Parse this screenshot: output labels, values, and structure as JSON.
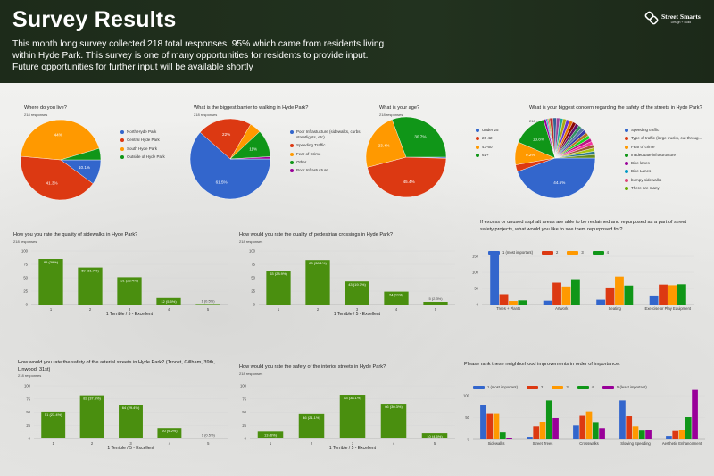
{
  "header": {
    "title": "Survey Results",
    "description": "This month long survey collected 218 total responses, 95% which came from residents living within Hyde Park. This survey is one of many opportunities for residents to provide input. Future opportunities for further input will be available shortly",
    "logo_name": "Street Smarts",
    "logo_tagline": "Design + Build"
  },
  "colors": {
    "blue": "#3366cc",
    "red": "#dc3912",
    "orange": "#ff9900",
    "green": "#109618",
    "purple": "#990099",
    "cyan": "#0099c6",
    "pink": "#dd4477",
    "lime": "#66aa00",
    "bar_green": "#4a8f0f",
    "header_bg": "#1f2e1c"
  },
  "chart_data": [
    {
      "id": "c1",
      "type": "pie",
      "title": "Where do you live?",
      "subtitle": "218 responses",
      "labels": [
        "North Hyde Park",
        "Central Hyde Park",
        "South Hyde Park",
        "Outside of Hyde Park"
      ],
      "values": [
        10.1,
        41.3,
        44,
        4.6
      ],
      "value_labels": [
        "10.1%",
        "41.3%",
        "44%",
        ""
      ],
      "colors": [
        "#3366cc",
        "#dc3912",
        "#ff9900",
        "#109618"
      ]
    },
    {
      "id": "c2",
      "type": "pie",
      "title": "What is the biggest barrier to walking in Hyde Park?",
      "subtitle": "218 responses",
      "labels": [
        "Poor Infrastucture (sidewalks, curbs, streetlights, etc)",
        "Speeding Traffic",
        "Fear of Crime",
        "Other",
        "Poor Infrastucture"
      ],
      "values": [
        61.5,
        22,
        4.6,
        11,
        0.9
      ],
      "value_labels": [
        "61.5%",
        "22%",
        "",
        "11%",
        ""
      ],
      "colors": [
        "#3366cc",
        "#dc3912",
        "#ff9900",
        "#109618",
        "#990099"
      ]
    },
    {
      "id": "c3",
      "type": "pie",
      "title": "What is your age?",
      "subtitle": "218 responses",
      "labels": [
        "Under 25",
        "26-42",
        "43-60",
        "61+"
      ],
      "values": [
        0.5,
        45.4,
        23.4,
        30.7
      ],
      "value_labels": [
        "",
        "45.4%",
        "23.4%",
        "30.7%"
      ],
      "colors": [
        "#3366cc",
        "#dc3912",
        "#ff9900",
        "#109618"
      ]
    },
    {
      "id": "c4",
      "type": "pie",
      "title": "What is your biggest concern regarding the safety of the streets in Hyde Park?",
      "subtitle": "218 responses",
      "labels": [
        "Speeding traffic",
        "Type of traffic (large trucks, cut throug...",
        "Fear of crime",
        "Inadequate infrastructure",
        "Bike lanes",
        "Bike Lanes",
        "bumpy sidewalks",
        "There are many"
      ],
      "values": [
        44.5,
        2.8,
        9.2,
        13.8,
        1,
        0.5,
        0.5,
        0.5
      ],
      "value_labels": [
        "44.5%",
        "",
        "9.2%",
        "13.8%",
        "",
        "",
        "",
        ""
      ],
      "colors": [
        "#3366cc",
        "#dc3912",
        "#ff9900",
        "#109618",
        "#990099",
        "#0099c6",
        "#dd4477",
        "#66aa00"
      ],
      "other_small_responses_pct": 27.2
    },
    {
      "id": "c5",
      "type": "bar",
      "title": "How you you rate the quality of sidewalks in Hyde Park?",
      "subtitle": "218 responses",
      "categories": [
        "1",
        "2",
        "3",
        "4",
        "5"
      ],
      "values": [
        85,
        69,
        51,
        12,
        1
      ],
      "value_labels": [
        "85 (39%)",
        "69 (31.7%)",
        "51 (23.4%)",
        "12 (5.5%)",
        "1 (0.5%)"
      ],
      "xlabel": "1 Terrible  /  5 - Excellent",
      "ylim": [
        0,
        100
      ],
      "yticks": [
        "0",
        "25",
        "50",
        "75",
        "100"
      ]
    },
    {
      "id": "c6",
      "type": "bar",
      "title": "How would you rate the quality of pedestrian crossings in Hyde Park?",
      "subtitle": "218 responses",
      "categories": [
        "1",
        "2",
        "3",
        "4",
        "5"
      ],
      "values": [
        63,
        83,
        43,
        24,
        5
      ],
      "value_labels": [
        "63 (28.9%)",
        "83 (38.1%)",
        "43 (19.7%)",
        "24 (11%)",
        "5 (2.3%)"
      ],
      "xlabel": "1 Terrible  /  5 - Excellent",
      "ylim": [
        0,
        100
      ],
      "yticks": [
        "0",
        "25",
        "50",
        "75",
        "100"
      ]
    },
    {
      "id": "c7",
      "type": "grouped-bar",
      "title": "If excess or unused asphalt areas are able to be reclaimed and repurposed as a part of street safety projects, what would you like to see them repurposed for?",
      "categories": [
        "Trees + Plants",
        "Artwork",
        "Seating",
        "Exercise or Play Equipment"
      ],
      "series": [
        {
          "name": "1 (most important)",
          "values": [
            158,
            12,
            15,
            28
          ]
        },
        {
          "name": "2",
          "values": [
            32,
            68,
            53,
            62
          ]
        },
        {
          "name": "3",
          "values": [
            11,
            56,
            87,
            60
          ]
        },
        {
          "name": "4",
          "values": [
            13,
            79,
            59,
            63
          ]
        }
      ],
      "colors": [
        "#3366cc",
        "#dc3912",
        "#ff9900",
        "#109618"
      ],
      "ylim": [
        0,
        150
      ],
      "yticks": [
        "0",
        "50",
        "100",
        "150"
      ]
    },
    {
      "id": "c8",
      "type": "bar",
      "title": "How would you rate the safety of the arterial streets in Hyde Park? (Troost, Gillham, 39th, Linwood, 31st)",
      "subtitle": "218 responses",
      "categories": [
        "1",
        "2",
        "3",
        "4",
        "5"
      ],
      "values": [
        51,
        82,
        64,
        20,
        1
      ],
      "value_labels": [
        "51 (23.4%)",
        "82 (37.6%)",
        "64 (29.4%)",
        "20 (9.2%)",
        "1 (0.5%)"
      ],
      "xlabel": "1 Terrible  /  5 - Excellent",
      "ylim": [
        0,
        100
      ],
      "yticks": [
        "0",
        "25",
        "50",
        "75",
        "100"
      ]
    },
    {
      "id": "c9",
      "type": "bar",
      "title": "How would you rate the safety of the interior streets in Hyde Park?",
      "subtitle": "218 responses",
      "categories": [
        "1",
        "2",
        "3",
        "4",
        "5"
      ],
      "values": [
        13,
        46,
        83,
        66,
        10
      ],
      "value_labels": [
        "13 (6%)",
        "46 (21.1%)",
        "83 (38.1%)",
        "66 (30.3%)",
        "10 (4.6%)"
      ],
      "xlabel": "1 Terrible  /  5 - Excellent",
      "ylim": [
        0,
        100
      ],
      "yticks": [
        "0",
        "25",
        "50",
        "75",
        "100"
      ]
    },
    {
      "id": "c10",
      "type": "grouped-bar",
      "title": "Please rank these neighborhood improvements in order of importance.",
      "categories": [
        "Sidewalks",
        "Street Trees",
        "Crosswalks",
        "Slowing Speeding",
        "Aesthetic Enhancement"
      ],
      "series": [
        {
          "name": "1 (most important)",
          "values": [
            78,
            6,
            32,
            89,
            8
          ]
        },
        {
          "name": "2",
          "values": [
            58,
            30,
            54,
            53,
            19
          ]
        },
        {
          "name": "3",
          "values": [
            58,
            39,
            64,
            30,
            21
          ]
        },
        {
          "name": "4",
          "values": [
            16,
            89,
            38,
            20,
            51
          ]
        },
        {
          "name": "5 (least important)",
          "values": [
            4,
            49,
            26,
            21,
            113
          ]
        }
      ],
      "colors": [
        "#3366cc",
        "#dc3912",
        "#ff9900",
        "#109618",
        "#990099"
      ],
      "ylim": [
        0,
        100
      ],
      "yticks": [
        "0",
        "50",
        "100"
      ]
    }
  ]
}
